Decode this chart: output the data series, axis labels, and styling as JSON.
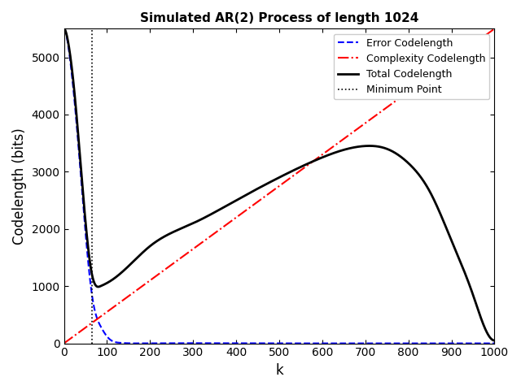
{
  "title": "Simulated AR(2) Process of length 1024",
  "xlabel": "k",
  "ylabel": "Codelength (bits)",
  "xlim": [
    0,
    1000
  ],
  "ylim": [
    0,
    5500
  ],
  "yticks": [
    0,
    1000,
    2000,
    3000,
    4000,
    5000
  ],
  "xticks": [
    0,
    100,
    200,
    300,
    400,
    500,
    600,
    700,
    800,
    900,
    1000
  ],
  "n_points": 1024,
  "min_k": 65,
  "complexity_scale": 5.5,
  "error_A": 5500,
  "error_b": 0.028,
  "background": "#ffffff"
}
